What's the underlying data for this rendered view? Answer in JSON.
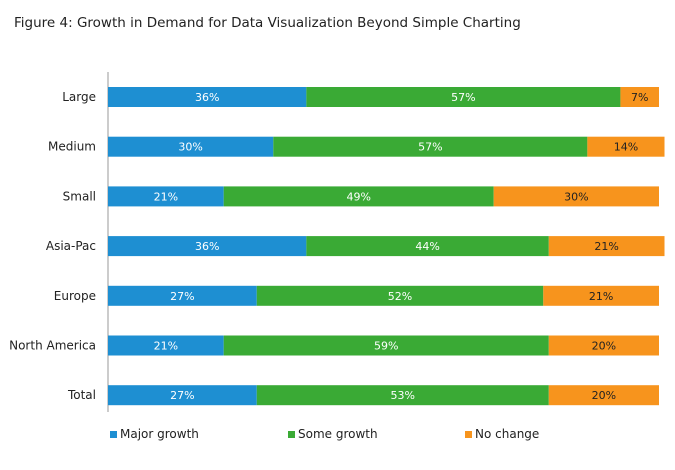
{
  "chart_data": {
    "type": "bar",
    "orientation": "horizontal",
    "stacked": true,
    "title": "Figure 4: Growth in Demand for Data Visualization Beyond Simple Charting",
    "categories": [
      "Large",
      "Medium",
      "Small",
      "Asia-Pac",
      "Europe",
      "North America",
      "Total"
    ],
    "series": [
      {
        "name": "Major growth",
        "color": "#1e8fd2",
        "label_color": "#ffffff",
        "values": [
          36,
          30,
          21,
          36,
          27,
          21,
          27
        ]
      },
      {
        "name": "Some growth",
        "color": "#3aaa35",
        "label_color": "#ffffff",
        "values": [
          57,
          57,
          49,
          44,
          52,
          59,
          53
        ]
      },
      {
        "name": "No change",
        "color": "#f7941d",
        "label_color": "#222222",
        "values": [
          7,
          14,
          30,
          21,
          21,
          20,
          20
        ]
      }
    ],
    "value_suffix": "%",
    "xlim": [
      0,
      100
    ],
    "grid": false,
    "legend_position": "bottom"
  }
}
